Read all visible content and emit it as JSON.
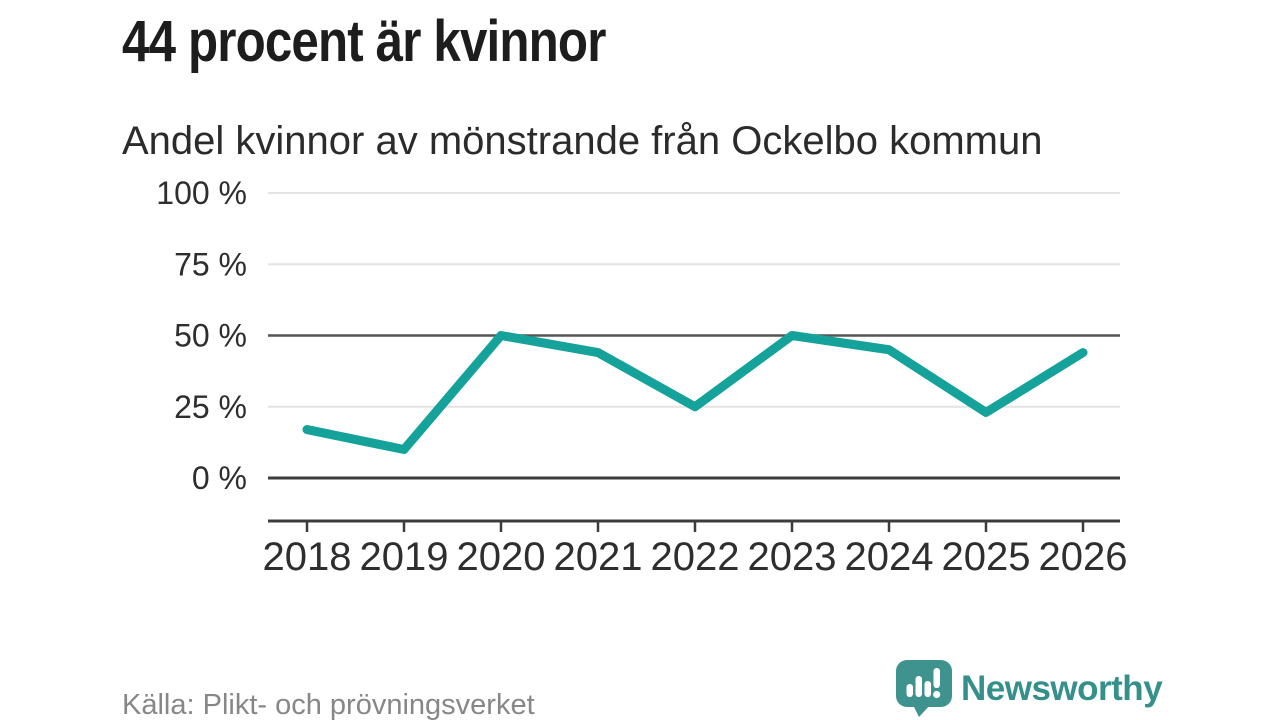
{
  "header": {
    "title": "44 procent är kvinnor",
    "subtitle": "Andel kvinnor av mönstrande från Ockelbo kommun"
  },
  "chart_data": {
    "type": "line",
    "categories": [
      "2018",
      "2019",
      "2020",
      "2021",
      "2022",
      "2023",
      "2024",
      "2025",
      "2026"
    ],
    "values": [
      17,
      10,
      50,
      44,
      25,
      50,
      45,
      23,
      44
    ],
    "series_name": "Andel kvinnor av mönstrande",
    "title": "44 procent är kvinnor",
    "subtitle": "Andel kvinnor av mönstrande från Ockelbo kommun",
    "xlabel": "",
    "ylabel": "",
    "ylim": [
      0,
      100
    ],
    "yticks": [
      0,
      25,
      50,
      75,
      100
    ],
    "ytick_suffix": " %",
    "grid": true,
    "emphasized_gridlines": [
      0,
      50
    ],
    "legend": "none",
    "line_color": "#14A29A"
  },
  "footer": {
    "source": "Källa: Plikt- och prövningsverket",
    "brand": {
      "name": "Newsworthy",
      "color": "#35908B",
      "icon_color": "#3E938E",
      "icon": "newsworthy-chart-bubble-icon"
    }
  }
}
